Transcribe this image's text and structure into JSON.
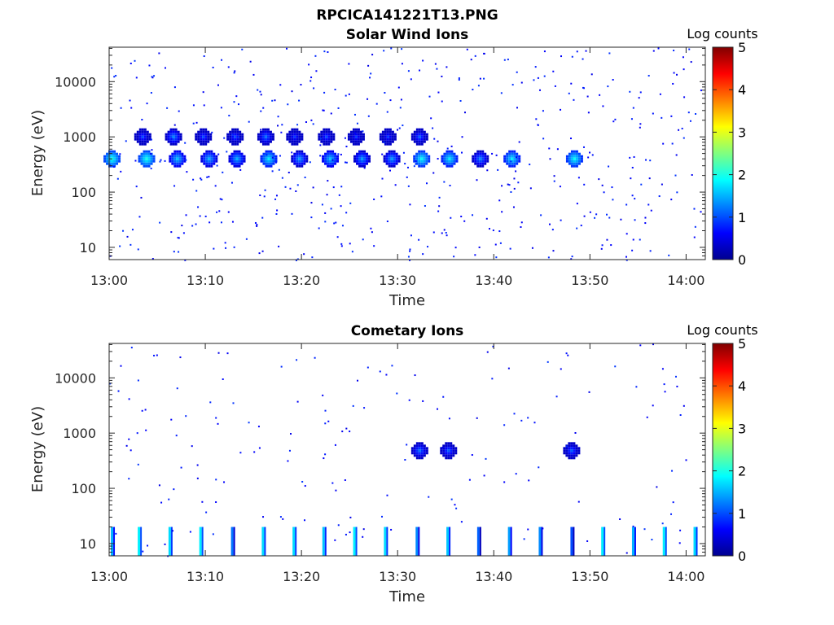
{
  "title": "RPCICA141221T13.PNG",
  "colorbar_ticks": [
    "5",
    "4",
    "3",
    "2",
    "1",
    "0"
  ],
  "colorbar_label": "Log counts",
  "chart_data": [
    {
      "type": "heatmap",
      "title": "Solar Wind Ions",
      "xlabel": "Time",
      "ylabel": "Energy (eV)",
      "yscale": "log",
      "xlim_minutes": [
        0,
        62
      ],
      "ylim": [
        6,
        42000
      ],
      "x_ticks": [
        "13:00",
        "13:10",
        "13:20",
        "13:30",
        "13:40",
        "13:50",
        "14:00"
      ],
      "x_tick_minutes": [
        0,
        10,
        20,
        30,
        40,
        50,
        60
      ],
      "y_ticks": [
        "10",
        "100",
        "1000",
        "10000"
      ],
      "y_tick_values": [
        10,
        100,
        1000,
        10000
      ],
      "colorbar": {
        "label": "Log counts",
        "range": [
          0,
          5
        ],
        "colormap": "jet"
      },
      "features": [
        {
          "desc": "main solar wind ion peak",
          "energy_eV": 400,
          "times_min": [
            0.3,
            3.9,
            7.1,
            10.4,
            13.3,
            16.6,
            19.8,
            23.0,
            26.3,
            29.4,
            32.5,
            35.4,
            38.6,
            41.9,
            48.4
          ],
          "log_counts": [
            2.0,
            2.0,
            1.6,
            1.5,
            1.5,
            1.8,
            1.4,
            1.6,
            1.4,
            1.4,
            1.9,
            1.8,
            1.3,
            1.8,
            1.9
          ]
        },
        {
          "desc": "secondary peak",
          "energy_eV": 1000,
          "times_min": [
            3.5,
            6.7,
            9.8,
            13.1,
            16.3,
            19.3,
            22.6,
            25.7,
            29.0,
            32.3
          ],
          "log_counts": [
            1.0,
            1.3,
            1.0,
            1.0,
            1.2,
            0.9,
            1.0,
            0.9,
            0.9,
            1.1
          ]
        }
      ],
      "grid": false
    },
    {
      "type": "heatmap",
      "title": "Cometary Ions",
      "xlabel": "Time",
      "ylabel": "Energy (eV)",
      "yscale": "log",
      "xlim_minutes": [
        0,
        62
      ],
      "ylim": [
        6,
        42000
      ],
      "x_ticks": [
        "13:00",
        "13:10",
        "13:20",
        "13:30",
        "13:40",
        "13:50",
        "14:00"
      ],
      "x_tick_minutes": [
        0,
        10,
        20,
        30,
        40,
        50,
        60
      ],
      "y_ticks": [
        "10",
        "100",
        "1000",
        "10000"
      ],
      "y_tick_values": [
        10,
        100,
        1000,
        10000
      ],
      "colorbar": {
        "label": "Log counts",
        "range": [
          0,
          5
        ],
        "colormap": "jet"
      },
      "features": [
        {
          "desc": "low energy bursts",
          "energy_range_eV": [
            6,
            20
          ],
          "times_min": [
            0.3,
            3.1,
            6.3,
            9.5,
            12.8,
            16.0,
            19.2,
            22.3,
            25.5,
            28.7,
            32.0,
            35.2,
            38.4,
            41.6,
            44.8,
            48.1,
            51.3,
            54.5,
            57.7,
            60.9
          ],
          "log_counts": [
            1.5,
            1.8,
            1.7,
            1.8,
            1.2,
            1.7,
            1.7,
            1.6,
            1.8,
            1.7,
            1.3,
            1.6,
            1.1,
            1.4,
            1.3,
            1.0,
            1.8,
            1.5,
            1.8,
            1.7
          ]
        },
        {
          "desc": "ion peak",
          "energy_eV": 480,
          "times_min": [
            32.3,
            35.3,
            48.1
          ],
          "log_counts": [
            1.2,
            1.1,
            1.1
          ]
        }
      ],
      "grid": false
    }
  ]
}
